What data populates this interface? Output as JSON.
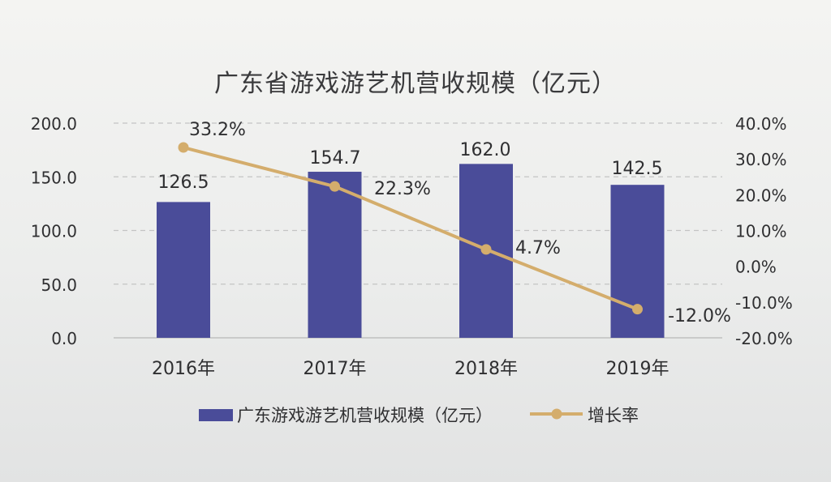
{
  "chart_data": {
    "type": "bar",
    "title": "广东省游戏游艺机营收规模（亿元）",
    "categories": [
      "2016年",
      "2017年",
      "2018年",
      "2019年"
    ],
    "series": [
      {
        "name": "广东游戏游艺机营收规模（亿元）",
        "type": "bar",
        "axis": "left",
        "values": [
          126.5,
          154.7,
          162.0,
          142.5
        ],
        "labels": [
          "126.5",
          "154.7",
          "162.0",
          "142.5"
        ]
      },
      {
        "name": "增长率",
        "type": "line",
        "axis": "right",
        "values": [
          33.2,
          22.3,
          4.7,
          -12.0
        ],
        "labels": [
          "33.2%",
          "22.3%",
          "4.7%",
          "-12.0%"
        ]
      }
    ],
    "y_left": {
      "ticks": [
        "0.0",
        "50.0",
        "100.0",
        "150.0",
        "200.0"
      ],
      "range": [
        0,
        200
      ]
    },
    "y_right": {
      "ticks": [
        "-20.0%",
        "-10.0%",
        "0.0%",
        "10.0%",
        "20.0%",
        "30.0%",
        "40.0%"
      ],
      "range": [
        -20,
        40
      ]
    },
    "grid": true,
    "legend": "bottom",
    "colors": {
      "bar": "#4a4c99",
      "line": "#d4ad6c"
    }
  }
}
